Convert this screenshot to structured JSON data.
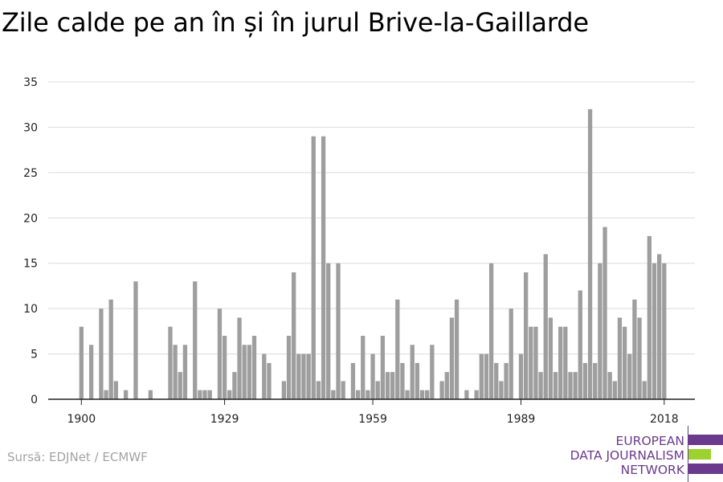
{
  "title": "Zile calde pe an în și în jurul Brive-la-Gaillarde",
  "source": "Sursă: EDJNet / ECMWF",
  "logo": {
    "line1": "EUROPEAN",
    "line2": "DATA JOURNALISM",
    "line3": "NETWORK",
    "purple": "#6b3a8c",
    "green": "#9bd22f"
  },
  "chart_data": {
    "type": "bar",
    "title": "Zile calde pe an în și în jurul Brive-la-Gaillarde",
    "xlabel": "",
    "ylabel": "",
    "color": "#9e9e9e",
    "ylim": [
      0,
      35
    ],
    "yticks": [
      0,
      5,
      10,
      15,
      20,
      25,
      30,
      35
    ],
    "xticks": [
      1900,
      1929,
      1959,
      1989,
      2018
    ],
    "grid": true,
    "x": [
      1900,
      1901,
      1902,
      1903,
      1904,
      1905,
      1906,
      1907,
      1908,
      1909,
      1910,
      1911,
      1912,
      1913,
      1914,
      1915,
      1916,
      1917,
      1918,
      1919,
      1920,
      1921,
      1922,
      1923,
      1924,
      1925,
      1926,
      1927,
      1928,
      1929,
      1930,
      1931,
      1932,
      1933,
      1934,
      1935,
      1936,
      1937,
      1938,
      1939,
      1940,
      1941,
      1942,
      1943,
      1944,
      1945,
      1946,
      1947,
      1948,
      1949,
      1950,
      1951,
      1952,
      1953,
      1954,
      1955,
      1956,
      1957,
      1958,
      1959,
      1960,
      1961,
      1962,
      1963,
      1964,
      1965,
      1966,
      1967,
      1968,
      1969,
      1970,
      1971,
      1972,
      1973,
      1974,
      1975,
      1976,
      1977,
      1978,
      1979,
      1980,
      1981,
      1982,
      1983,
      1984,
      1985,
      1986,
      1987,
      1988,
      1989,
      1990,
      1991,
      1992,
      1993,
      1994,
      1995,
      1996,
      1997,
      1998,
      1999,
      2000,
      2001,
      2002,
      2003,
      2004,
      2005,
      2006,
      2007,
      2008,
      2009,
      2010,
      2011,
      2012,
      2013,
      2014,
      2015,
      2016,
      2017,
      2018
    ],
    "values": [
      8,
      0,
      6,
      0,
      10,
      1,
      11,
      2,
      0,
      1,
      0,
      13,
      0,
      0,
      1,
      0,
      0,
      0,
      8,
      6,
      3,
      6,
      0,
      13,
      1,
      1,
      1,
      0,
      10,
      7,
      1,
      3,
      9,
      6,
      6,
      7,
      0,
      5,
      4,
      0,
      0,
      2,
      7,
      14,
      5,
      5,
      5,
      29,
      2,
      29,
      15,
      1,
      15,
      2,
      0,
      4,
      1,
      7,
      1,
      5,
      2,
      7,
      3,
      3,
      11,
      4,
      1,
      6,
      4,
      1,
      1,
      6,
      0,
      2,
      3,
      9,
      11,
      0,
      1,
      0,
      1,
      5,
      5,
      15,
      4,
      2,
      4,
      10,
      0,
      5,
      14,
      8,
      8,
      3,
      16,
      9,
      3,
      8,
      8,
      3,
      3,
      12,
      4,
      32,
      4,
      15,
      19,
      3,
      2,
      9,
      8,
      5,
      11,
      9,
      2,
      18,
      15,
      16,
      15
    ]
  }
}
